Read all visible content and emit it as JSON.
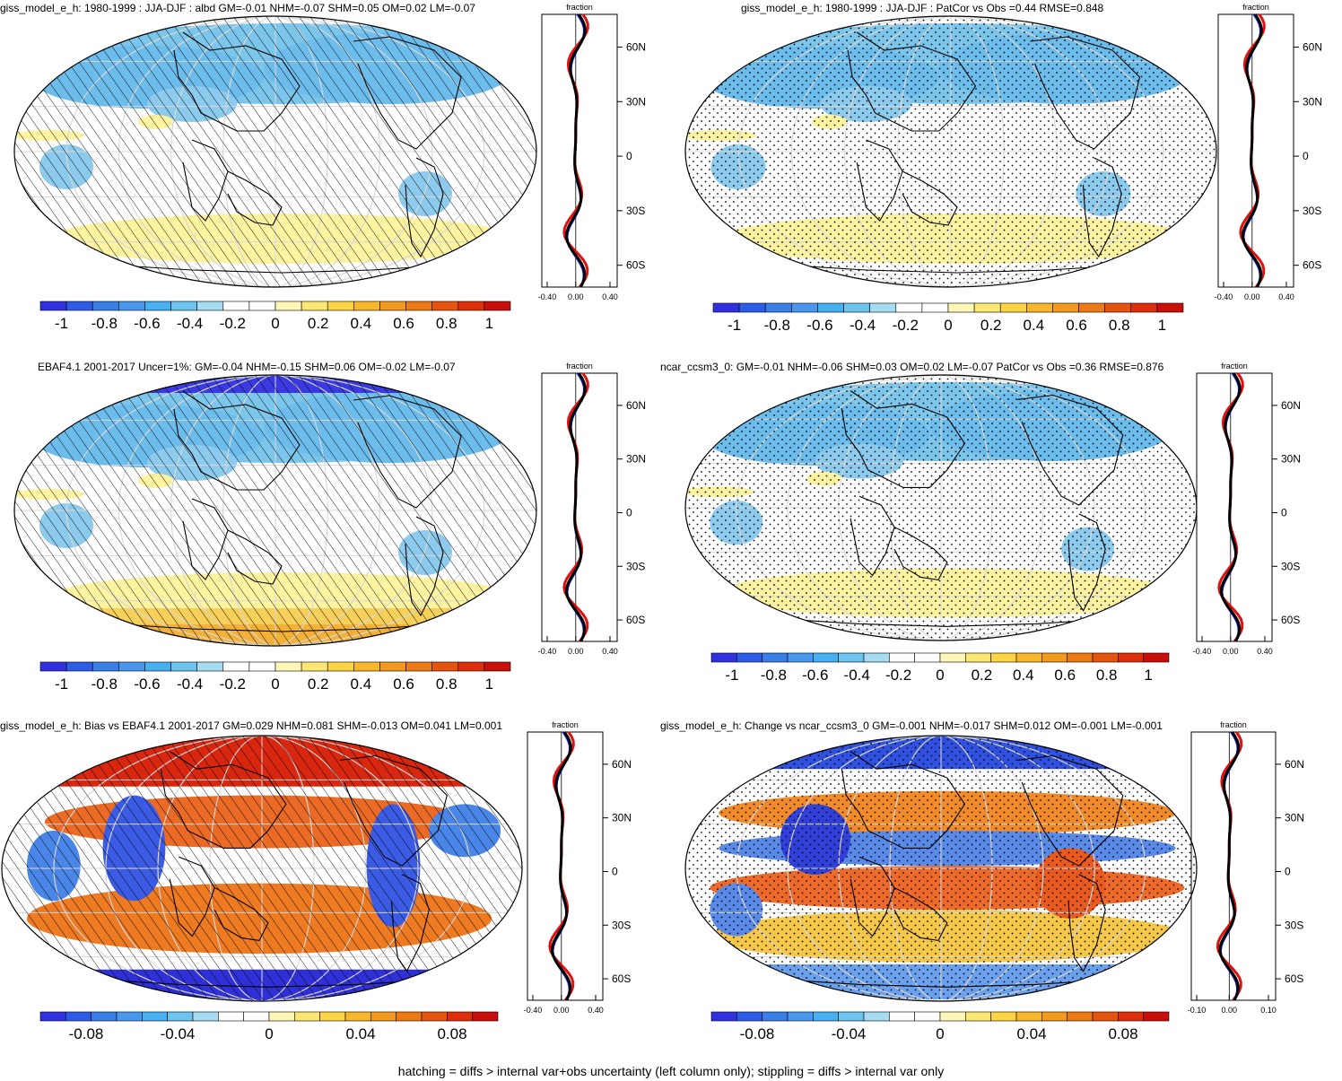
{
  "footer": "hatching = diffs > internal var+obs uncertainty (left column only); stippling = diffs > internal var only",
  "profile_axis": {
    "header": "fraction",
    "lat_labels": [
      "60N",
      "30N",
      "0",
      "30S",
      "60S"
    ],
    "x_labels_default": [
      "-0.40",
      "0.00",
      "0.40"
    ],
    "x_labels_change": [
      "-0.10",
      "0.00",
      "0.10"
    ]
  },
  "colorbar_unit": {
    "labels": [
      "-1",
      "-0.8",
      "-0.6",
      "-0.4",
      "-0.2",
      "0",
      "0.2",
      "0.4",
      "0.6",
      "0.8",
      "1"
    ],
    "colors": [
      "#3030e0",
      "#2f5ce6",
      "#3a7ee8",
      "#4a98ee",
      "#48b0f0",
      "#6cc4ee",
      "#a6dcf2",
      "#ffffff",
      "#ffffff",
      "#fff7b8",
      "#fde774",
      "#fcd445",
      "#f7b72c",
      "#f2991f",
      "#ec7a16",
      "#e55510",
      "#dd2f0c",
      "#c90f0b"
    ]
  },
  "colorbar_bias": {
    "labels": [
      "-0.08",
      "-0.04",
      "0",
      "0.04",
      "0.08"
    ],
    "colors": [
      "#3030e0",
      "#2f5ce6",
      "#3a7ee8",
      "#4a98ee",
      "#48b0f0",
      "#6cc4ee",
      "#a6dcf2",
      "#ffffff",
      "#ffffff",
      "#fff7b8",
      "#fde774",
      "#fcd445",
      "#f7b72c",
      "#f2991f",
      "#ec7a16",
      "#e55510",
      "#dd2f0c",
      "#c90f0b"
    ]
  },
  "panels": [
    {
      "title": "giss_model_e_h: 1980-1999 : JJA-DJF : albd GM=-0.01 NHM=-0.07 SHM=0.05 OM=0.02 LM=-0.07",
      "overlay": "hatch",
      "field": "albedo_model",
      "colorbar": "unit",
      "profile_scale": "default"
    },
    {
      "title": "giss_model_e_h: 1980-1999 : JJA-DJF : PatCor vs Obs =0.44 RMSE=0.848",
      "overlay": "stipple",
      "field": "albedo_model",
      "colorbar": "unit",
      "profile_scale": "default"
    },
    {
      "title": "EBAF4.1 2001-2017 Uncer=1%: GM=-0.04 NHM=-0.15 SHM=0.06 OM=-0.02 LM=-0.07",
      "overlay": "hatch",
      "field": "albedo_obs",
      "colorbar": "unit",
      "profile_scale": "default"
    },
    {
      "title": "ncar_ccsm3_0: GM=-0.01 NHM=-0.06 SHM=0.03 OM=0.02 LM=-0.07 PatCor vs Obs =0.36 RMSE=0.876",
      "overlay": "stipple",
      "field": "albedo_other",
      "colorbar": "unit",
      "profile_scale": "default"
    },
    {
      "title": "giss_model_e_h: Bias vs EBAF4.1 2001-2017 GM=0.029 NHM=0.081 SHM=-0.013 OM=0.041 LM=0.001",
      "overlay": "hatch",
      "field": "bias",
      "colorbar": "bias",
      "profile_scale": "default"
    },
    {
      "title": "giss_model_e_h: Change vs ncar_ccsm3_0 GM=-0.001 NHM=-0.017 SHM=0.012 OM=-0.001 LM=-0.001",
      "overlay": "stipple",
      "field": "change",
      "colorbar": "bias",
      "profile_scale": "change"
    }
  ]
}
